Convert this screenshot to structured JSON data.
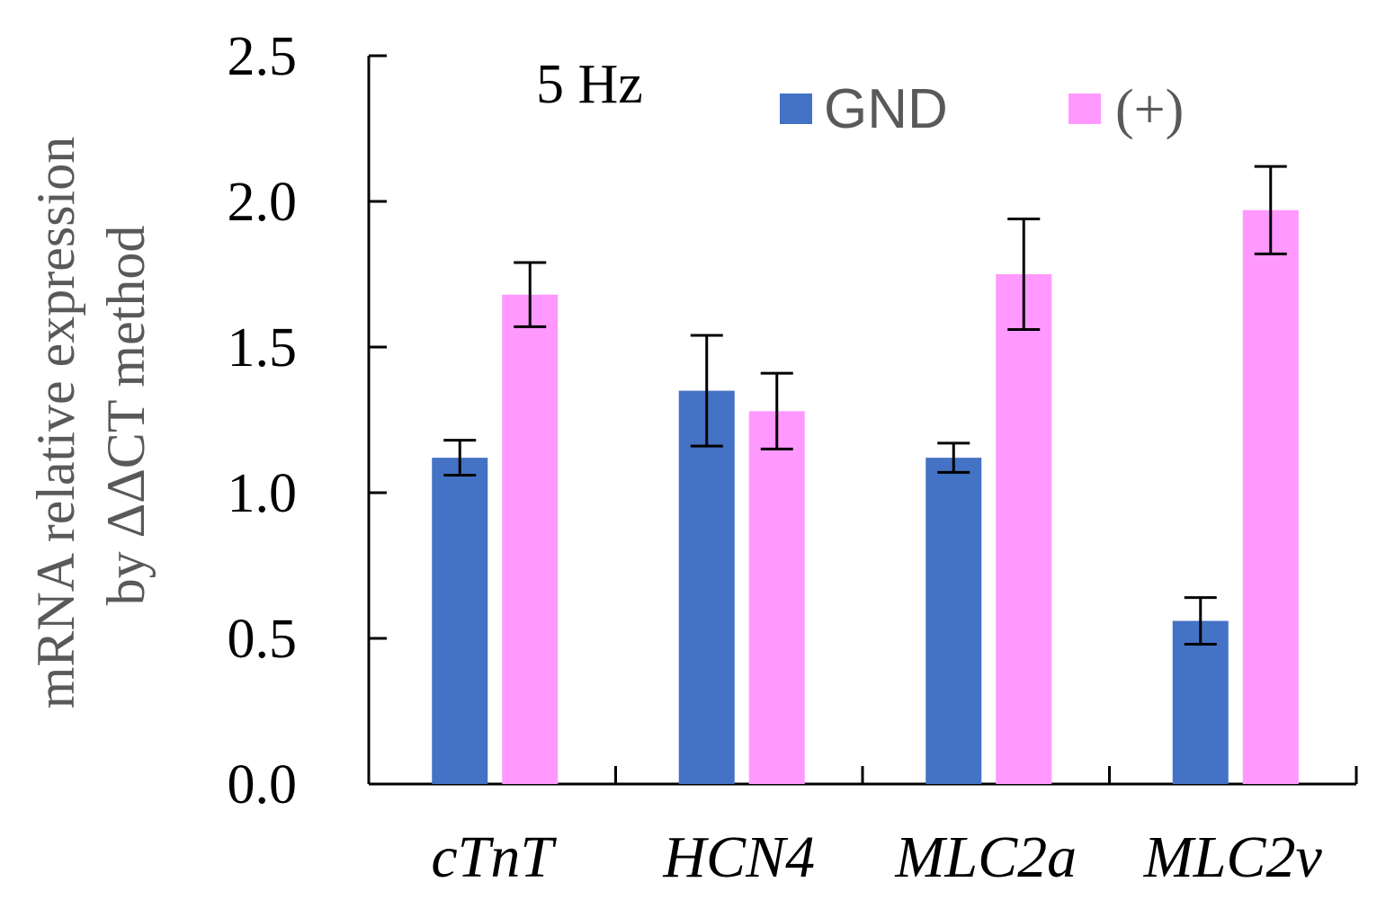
{
  "chart_data": {
    "type": "bar",
    "categories": [
      "cTnT",
      "HCN4",
      "MLC2a",
      "MLC2v"
    ],
    "series": [
      {
        "name": "GND",
        "color": "#4472C4",
        "values": [
          1.12,
          1.35,
          1.12,
          0.56
        ],
        "errors": [
          0.06,
          0.19,
          0.05,
          0.08
        ]
      },
      {
        "name": "(+)",
        "color": "#FF99FF",
        "values": [
          1.68,
          1.28,
          1.75,
          1.97
        ],
        "errors": [
          0.11,
          0.13,
          0.19,
          0.15
        ]
      }
    ],
    "annotation": "5 Hz",
    "ylabel_line1": "mRNA relative expression",
    "ylabel_line2": "by ΔΔCT method",
    "xlabel": "",
    "ylim": [
      0,
      2.5
    ],
    "yticks": [
      "0.0",
      "0.5",
      "1.0",
      "1.5",
      "2.0",
      "2.5"
    ],
    "ytick_values": [
      0,
      0.5,
      1.0,
      1.5,
      2.0,
      2.5
    ],
    "grid": false,
    "legend_position": "top-right"
  }
}
